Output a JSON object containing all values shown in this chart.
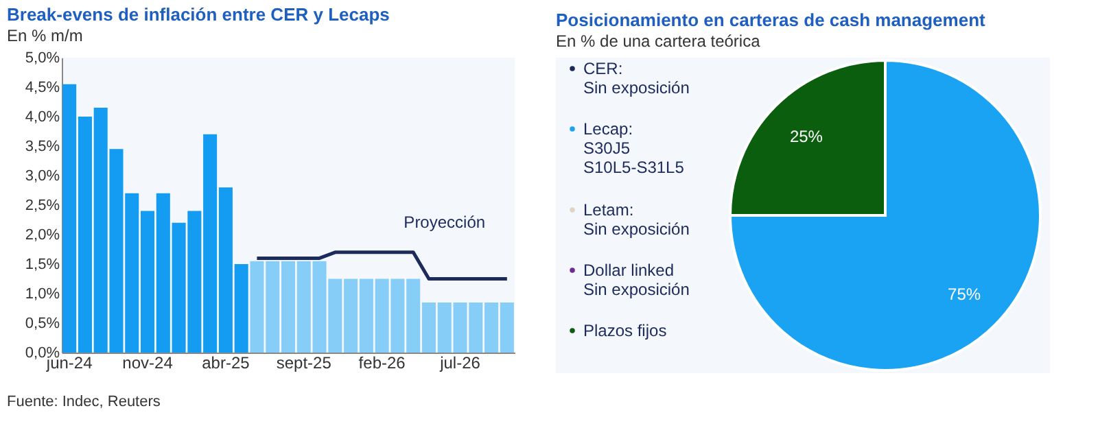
{
  "chart_data": [
    {
      "type": "bar",
      "title": "Break-evens de inflación entre CER y Lecaps",
      "subtitle": "En % m/m",
      "categories": [
        "jun-24",
        null,
        null,
        null,
        null,
        "nov-24",
        null,
        null,
        null,
        null,
        "abr-25",
        null,
        null,
        null,
        null,
        "sept-25",
        null,
        null,
        null,
        null,
        "feb-26",
        null,
        null,
        null,
        null,
        "jul-26",
        null,
        null,
        null
      ],
      "series": [
        {
          "type": "bar",
          "colors": [
            "#139cf2",
            "#139cf2",
            "#139cf2",
            "#139cf2",
            "#139cf2",
            "#139cf2",
            "#139cf2",
            "#139cf2",
            "#139cf2",
            "#139cf2",
            "#139cf2",
            "#139cf2",
            "#86cdf8",
            "#86cdf8",
            "#86cdf8",
            "#86cdf8",
            "#86cdf8",
            "#86cdf8",
            "#86cdf8",
            "#86cdf8",
            "#86cdf8",
            "#86cdf8",
            "#86cdf8",
            "#86cdf8",
            "#86cdf8",
            "#86cdf8",
            "#86cdf8",
            "#86cdf8",
            "#86cdf8"
          ],
          "values": [
            4.55,
            4.0,
            4.15,
            3.45,
            2.7,
            2.4,
            2.7,
            2.2,
            2.4,
            3.7,
            2.8,
            1.5,
            1.55,
            1.55,
            1.55,
            1.55,
            1.55,
            1.25,
            1.25,
            1.25,
            1.25,
            1.25,
            1.25,
            0.85,
            0.85,
            0.85,
            0.85,
            0.85,
            0.85
          ]
        },
        {
          "type": "line",
          "name": "Proyección",
          "color": "#1c2a5c",
          "values": [
            null,
            null,
            null,
            null,
            null,
            null,
            null,
            null,
            null,
            null,
            null,
            null,
            1.6,
            1.6,
            1.6,
            1.6,
            1.6,
            1.7,
            1.7,
            1.7,
            1.7,
            1.7,
            1.7,
            1.25,
            1.25,
            1.25,
            1.25,
            1.25,
            1.25
          ]
        }
      ],
      "ylim": [
        0,
        5
      ],
      "yticks": [
        {
          "value": 0,
          "label": "0,0%"
        },
        {
          "value": 0.5,
          "label": "0,5%"
        },
        {
          "value": 1,
          "label": "1,0%"
        },
        {
          "value": 1.5,
          "label": "1,5%"
        },
        {
          "value": 2,
          "label": "2,0%"
        },
        {
          "value": 2.5,
          "label": "2,5%"
        },
        {
          "value": 3,
          "label": "3,0%"
        },
        {
          "value": 3.5,
          "label": "3,5%"
        },
        {
          "value": 4,
          "label": "4,0%"
        },
        {
          "value": 4.5,
          "label": "4,5%"
        },
        {
          "value": 5,
          "label": "5,0%"
        }
      ],
      "grid": false,
      "line_style": "solid",
      "marker": "none",
      "annotations": [
        "Fuente: Indec, Reuters"
      ]
    },
    {
      "type": "pie",
      "title": "Posicionamiento en carteras de cash management",
      "subtitle": "En % de una cartera teórica",
      "categories": [
        "CER:\nSin exposición",
        "Lecap:\nS30J5\nS10L5-S31L5",
        "Letam:\nSin exposición",
        "Dollar linked\nSin exposición",
        "Plazos fijos"
      ],
      "values": [
        0,
        75,
        0,
        0,
        25
      ],
      "colors": [
        "#1c2a5c",
        "#1aa3f2",
        "#e3d3c2",
        "#6a2c91",
        "#0b5e0e"
      ],
      "value_labels": [
        null,
        "75%",
        null,
        null,
        "25%"
      ],
      "legend": "left"
    }
  ]
}
